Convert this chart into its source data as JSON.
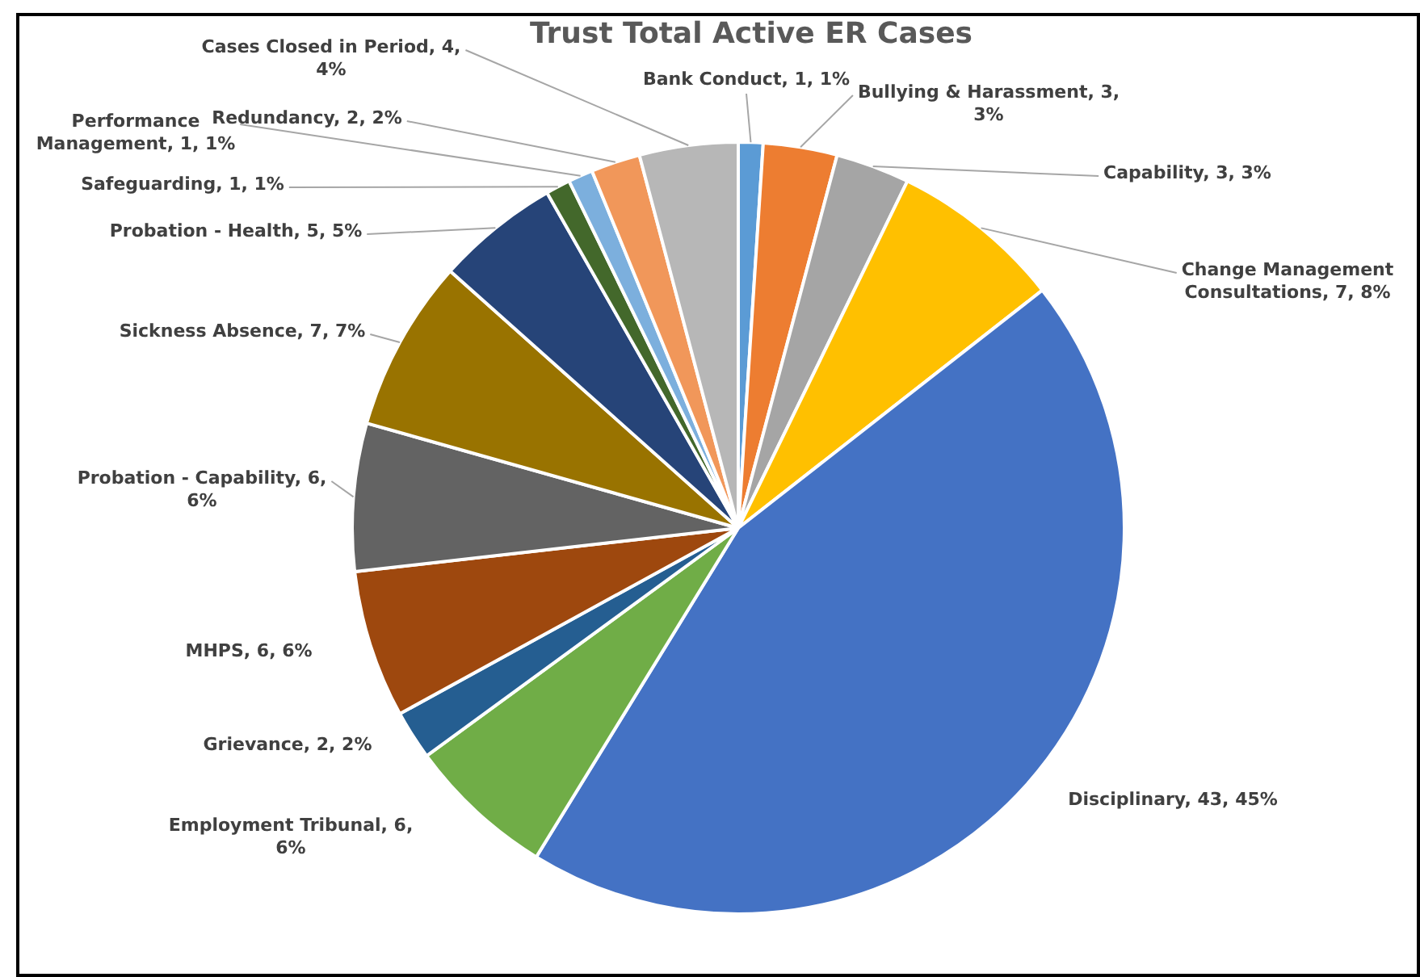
{
  "chart_data": {
    "type": "pie",
    "title": "Trust Total Active ER Cases",
    "categories": [
      "Bank Conduct",
      "Bullying & Harassment",
      "Capability",
      "Change Management Consultations",
      "Disciplinary",
      "Employment Tribunal",
      "Grievance",
      "MHPS",
      "Probation - Capability",
      "Sickness Absence",
      "Probation - Health",
      "Safeguarding",
      "Performance Management",
      "Redundancy",
      "Cases Closed in Period"
    ],
    "values": [
      1,
      3,
      3,
      7,
      43,
      6,
      2,
      6,
      6,
      7,
      5,
      1,
      1,
      2,
      4
    ],
    "value_labels": [
      "1, 1%",
      "3, 3%",
      "3, 3%",
      "7, 8%",
      "43, 45%",
      "6, 6%",
      "2, 2%",
      "6, 6%",
      "6, 6%",
      "7, 7%",
      "5, 5%",
      "1, 1%",
      "1, 1%",
      "2, 2%",
      "4, 4%"
    ],
    "colors": [
      "#5b9bd5",
      "#ed7d31",
      "#a5a5a5",
      "#ffc000",
      "#4472c4",
      "#70ad47",
      "#255e91",
      "#9e480e",
      "#636363",
      "#997300",
      "#264478",
      "#43682b",
      "#7cafdd",
      "#f1975a",
      "#b7b7b7"
    ],
    "legend": false
  }
}
